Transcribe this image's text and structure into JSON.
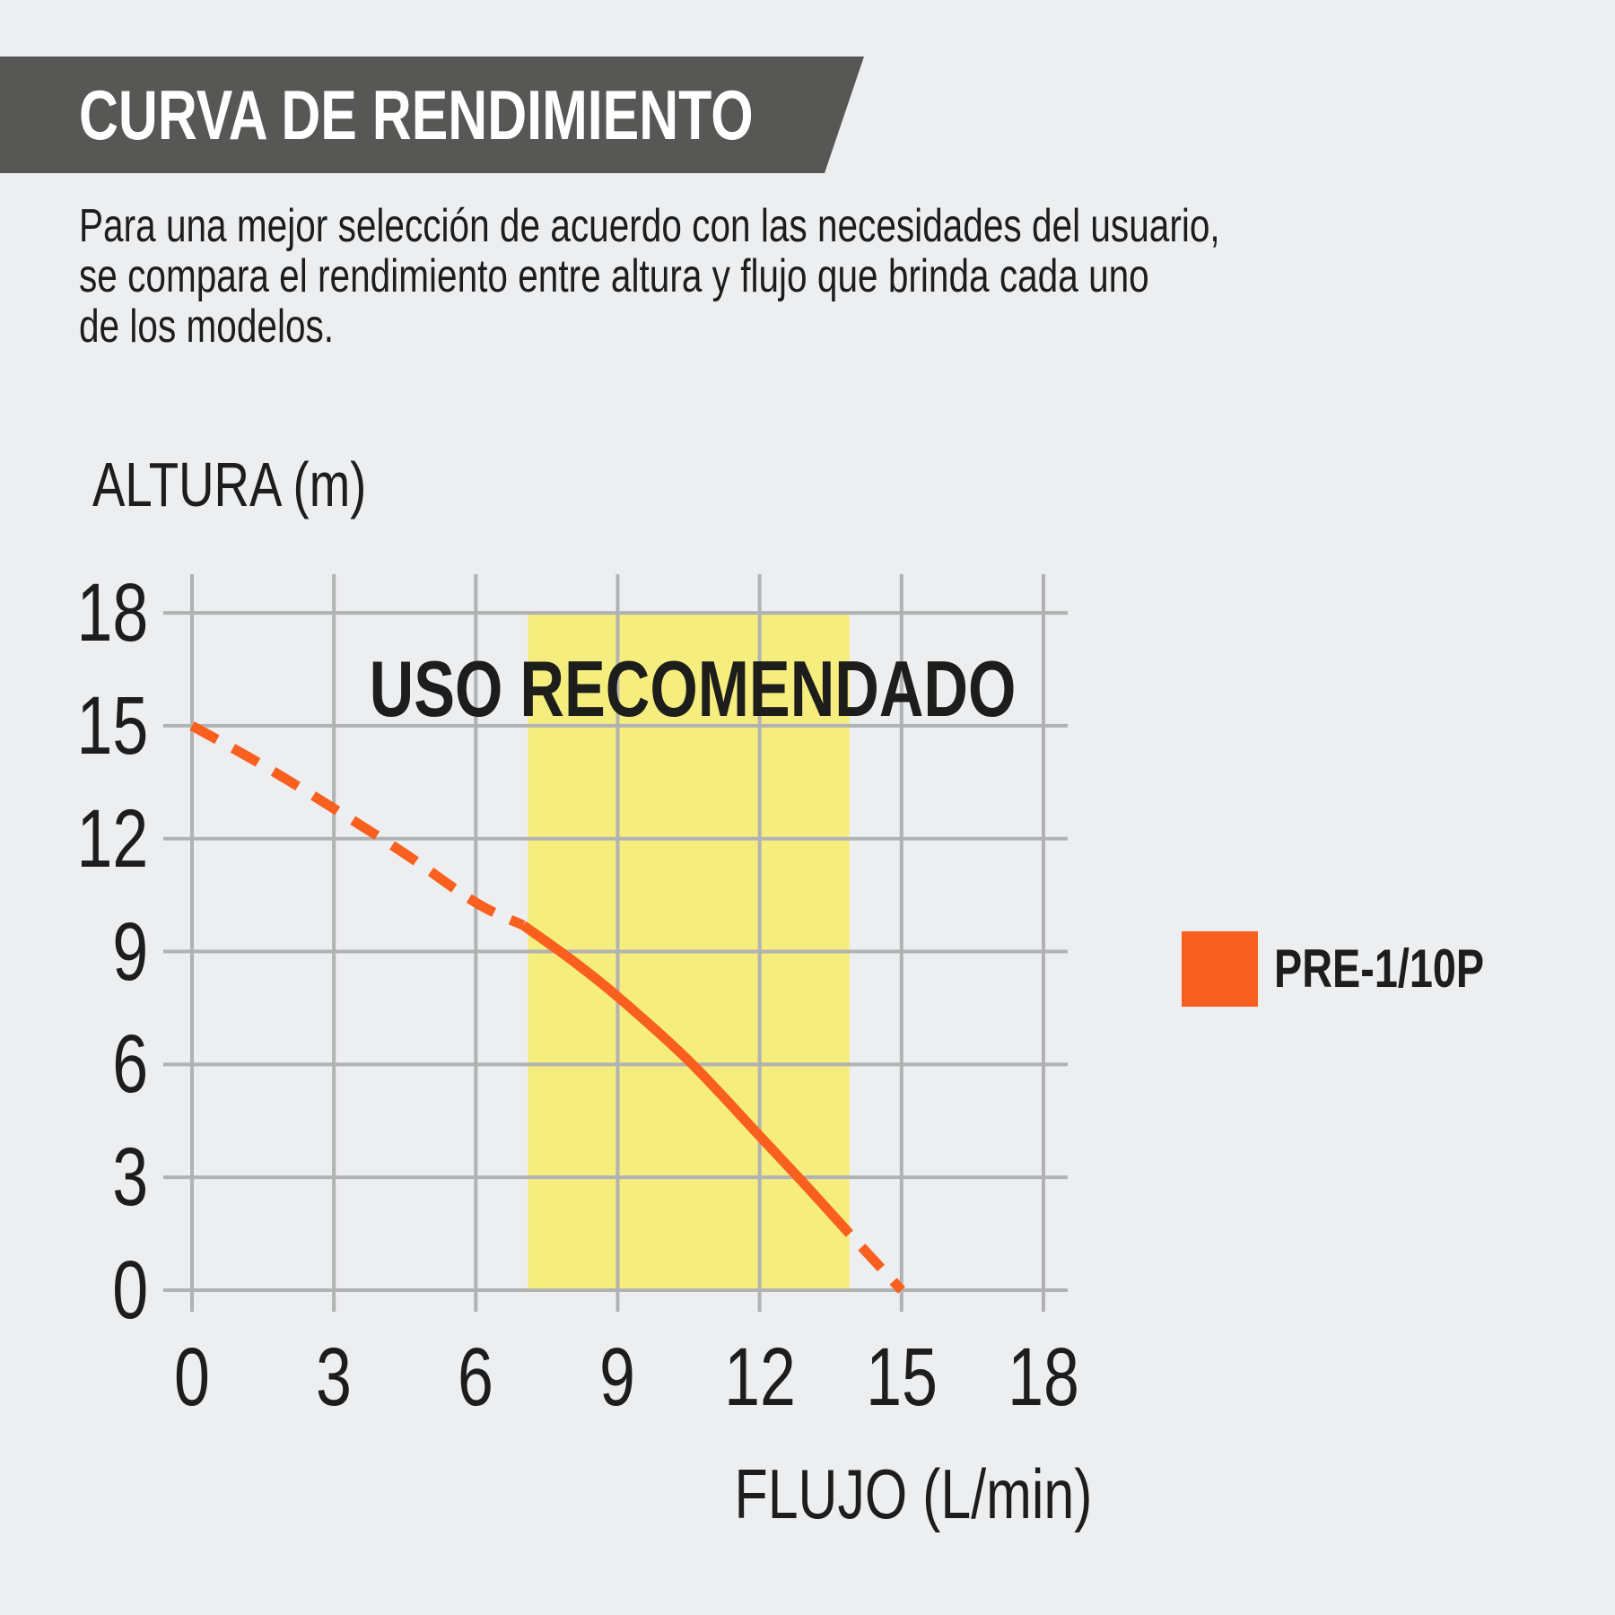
{
  "page": {
    "background": "#edeef0",
    "text_color": "#1d1d1b"
  },
  "header": {
    "title": "CURVA DE RENDIMIENTO",
    "banner_color": "#575756",
    "title_color": "#ffffff"
  },
  "intro": {
    "lines": [
      "Para una mejor selección de acuerdo con las necesidades del usuario,",
      "se compara el rendimiento entre altura y flujo que brinda cada uno",
      "de los modelos."
    ]
  },
  "chart_data": {
    "type": "line",
    "xlabel": "FLUJO (L/min)",
    "ylabel": "ALTURA (m)",
    "xlim": [
      0,
      18
    ],
    "ylim": [
      0,
      18
    ],
    "xticks": [
      0,
      3,
      6,
      9,
      12,
      15,
      18
    ],
    "yticks": [
      0,
      3,
      6,
      9,
      12,
      15,
      18
    ],
    "grid": true,
    "grid_color": "#b1b2b3",
    "annotation": "USO RECOMENDADO",
    "recommended_band_x": [
      7.1,
      13.9
    ],
    "band_color": "#f5ee7e",
    "series": [
      {
        "name": "PRE-1/10P",
        "color": "#f95f1e",
        "segments": [
          {
            "style": "dashed",
            "points": [
              [
                0,
                15
              ],
              [
                1.5,
                13.95
              ],
              [
                3,
                12.8
              ],
              [
                4.5,
                11.6
              ],
              [
                6,
                10.3
              ],
              [
                7,
                9.7
              ]
            ]
          },
          {
            "style": "solid",
            "points": [
              [
                7,
                9.7
              ],
              [
                8,
                8.8
              ],
              [
                9,
                7.8
              ],
              [
                10.5,
                6.1
              ],
              [
                12,
                4.1
              ],
              [
                13,
                2.75
              ],
              [
                13.9,
                1.5
              ]
            ]
          },
          {
            "style": "dashed",
            "points": [
              [
                13.9,
                1.5
              ],
              [
                15,
                0
              ]
            ]
          }
        ]
      }
    ]
  },
  "legend": {
    "position": "right",
    "items": [
      {
        "label": "PRE-1/10P",
        "color": "#f95f1e"
      }
    ]
  }
}
